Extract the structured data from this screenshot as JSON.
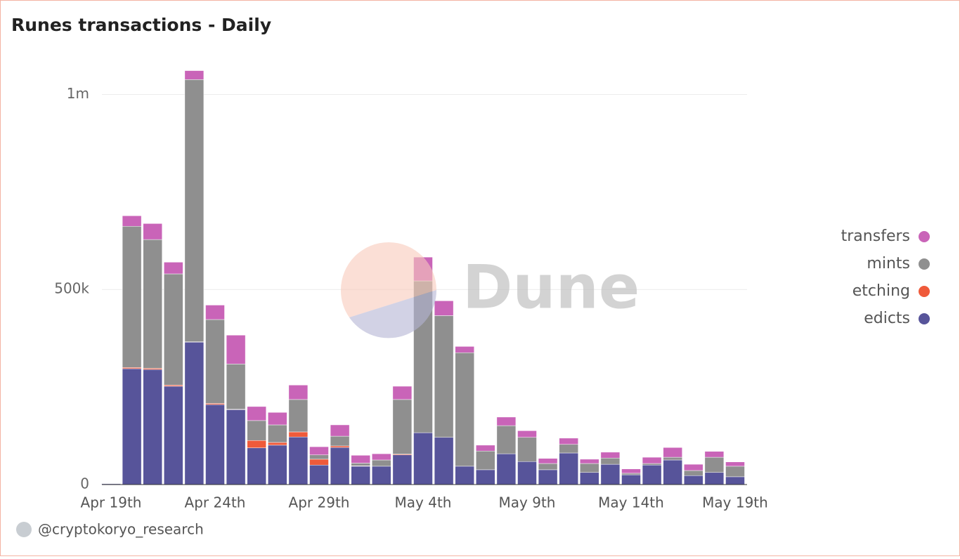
{
  "chart_data": {
    "type": "stacked_bar",
    "title": "Runes transactions - Daily",
    "categories": [
      "Apr 19th",
      null,
      null,
      null,
      null,
      "Apr 24th",
      null,
      null,
      null,
      null,
      "Apr 29th",
      null,
      null,
      null,
      null,
      "May 4th",
      null,
      null,
      null,
      null,
      "May 9th",
      null,
      null,
      null,
      null,
      "May 14th",
      null,
      null,
      null,
      null,
      "May 19th"
    ],
    "series": [
      {
        "name": "edicts",
        "color": "#57549a",
        "values": [
          2000,
          297000,
          295000,
          252000,
          365000,
          205000,
          192000,
          94000,
          101000,
          122000,
          50000,
          95000,
          47000,
          47000,
          76000,
          133000,
          121000,
          47000,
          38000,
          79000,
          59000,
          38000,
          81000,
          31000,
          52000,
          25000,
          50000,
          63000,
          23000,
          31000,
          20000
        ]
      },
      {
        "name": "etching",
        "color": "#ef5a3a",
        "values": [
          0,
          3000,
          3000,
          3000,
          1000,
          3000,
          1000,
          19000,
          7000,
          13000,
          15000,
          4000,
          1000,
          0,
          2000,
          0,
          0,
          0,
          0,
          0,
          0,
          0,
          0,
          0,
          0,
          0,
          0,
          0,
          0,
          0,
          0
        ]
      },
      {
        "name": "mints",
        "color": "#8f8f8f",
        "values": [
          0,
          362000,
          330000,
          285000,
          672000,
          215000,
          116000,
          51000,
          45000,
          83000,
          11000,
          25000,
          7000,
          16000,
          140000,
          389000,
          312000,
          291000,
          48000,
          72000,
          62000,
          16000,
          22000,
          23000,
          16000,
          4000,
          4000,
          7000,
          13000,
          39000,
          27000
        ]
      },
      {
        "name": "transfers",
        "color": "#c964b8",
        "values": [
          0,
          27000,
          41000,
          30000,
          23000,
          37000,
          74000,
          36000,
          32000,
          37000,
          21000,
          29000,
          20000,
          16000,
          34000,
          61000,
          38000,
          16000,
          15000,
          22000,
          17000,
          13000,
          16000,
          11000,
          15000,
          11000,
          16000,
          25000,
          16000,
          15000,
          11000
        ]
      }
    ],
    "ylim": [
      0,
      1080000
    ],
    "yticks": [
      0,
      {
        "value": 500000,
        "label": "500k"
      },
      {
        "value": 1000000,
        "label": "1m"
      }
    ],
    "grid": true,
    "legend": "right",
    "watermark": "Dune",
    "credit": "@cryptokoryo_research"
  }
}
